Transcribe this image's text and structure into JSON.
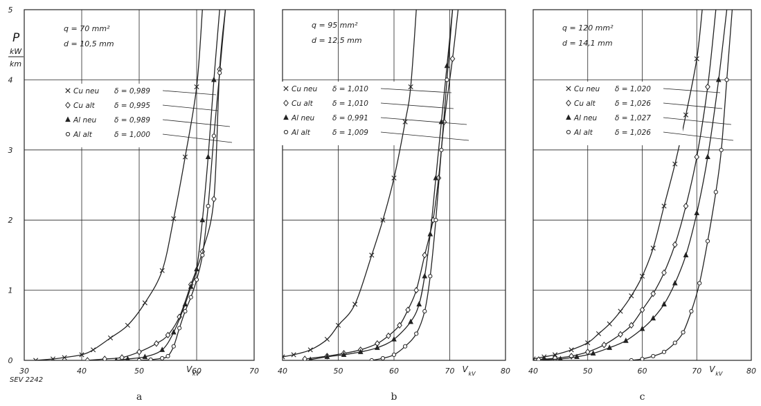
{
  "figure": {
    "ylabel_symbol": "P",
    "yunit_num": "kW",
    "yunit_den": "km",
    "xlabel_main": "V",
    "xlabel_sub": "kV",
    "source_code": "SEV 2242",
    "line_color": "#222222",
    "paper_color": "#ffffff"
  },
  "chart_data": [
    {
      "type": "line",
      "panel_label": "a",
      "params": [
        "q = 70 mm²",
        "d = 10,5 mm"
      ],
      "xlim": [
        30,
        70
      ],
      "ylim": [
        0,
        5
      ],
      "xticks": [
        30,
        40,
        50,
        60,
        70
      ],
      "yticks": [
        0,
        1,
        2,
        3,
        4,
        5
      ],
      "grid": true,
      "legend_position": "middle",
      "series": [
        {
          "name": "Cu neu",
          "delta": "δ = 0,989",
          "marker": "x",
          "x": [
            32,
            35,
            37,
            40,
            42,
            45,
            48,
            51,
            54,
            56,
            58,
            60,
            61
          ],
          "y": [
            0,
            0.02,
            0.04,
            0.08,
            0.15,
            0.32,
            0.5,
            0.82,
            1.28,
            2.02,
            2.9,
            3.9,
            5
          ]
        },
        {
          "name": "Cu alt",
          "delta": "δ = 0,995",
          "marker": "diamond",
          "x": [
            41,
            44,
            47,
            50,
            53,
            55,
            57,
            59,
            61,
            63,
            64,
            65
          ],
          "y": [
            0,
            0.02,
            0.04,
            0.12,
            0.24,
            0.36,
            0.62,
            1.08,
            1.55,
            2.3,
            4.15,
            5
          ]
        },
        {
          "name": "Al neu",
          "delta": "δ = 0,989",
          "marker": "triangle",
          "x": [
            46,
            48,
            51,
            54,
            56,
            58,
            59,
            60,
            61,
            62,
            63,
            64
          ],
          "y": [
            0,
            0.02,
            0.05,
            0.15,
            0.4,
            0.8,
            1.05,
            1.3,
            2.0,
            2.9,
            4.0,
            5
          ]
        },
        {
          "name": "Al alt",
          "delta": "δ = 1,000",
          "marker": "circle",
          "x": [
            50,
            52,
            54,
            55,
            56,
            57,
            58,
            59,
            60,
            61,
            62,
            63,
            64,
            65
          ],
          "y": [
            0,
            0.01,
            0.03,
            0.06,
            0.2,
            0.46,
            0.7,
            0.9,
            1.15,
            1.5,
            2.2,
            3.2,
            4.1,
            5
          ]
        }
      ]
    },
    {
      "type": "line",
      "panel_label": "b",
      "params": [
        "q = 95 mm²",
        "d = 12,5 mm"
      ],
      "xlim": [
        40,
        80
      ],
      "ylim": [
        0,
        5
      ],
      "xticks": [
        40,
        50,
        60,
        70,
        80
      ],
      "yticks": [
        0,
        1,
        2,
        3,
        4,
        5
      ],
      "grid": true,
      "legend_position": "middle",
      "series": [
        {
          "name": "Cu neu",
          "delta": "δ = 1,010",
          "marker": "x",
          "x": [
            40,
            42,
            45,
            48,
            50,
            53,
            56,
            58,
            60,
            62,
            63,
            64
          ],
          "y": [
            0.05,
            0.08,
            0.15,
            0.3,
            0.5,
            0.8,
            1.5,
            2.0,
            2.6,
            3.4,
            3.9,
            5
          ]
        },
        {
          "name": "Cu alt",
          "delta": "δ = 1,010",
          "marker": "diamond",
          "x": [
            44,
            48,
            51,
            54,
            57,
            59,
            61,
            62.5,
            64,
            65.5,
            67,
            68,
            69,
            70.5,
            71.5
          ],
          "y": [
            0.02,
            0.06,
            0.1,
            0.15,
            0.24,
            0.35,
            0.5,
            0.72,
            1.0,
            1.5,
            2.0,
            2.6,
            3.4,
            4.3,
            5
          ]
        },
        {
          "name": "Al neu",
          "delta": "δ = 0,991",
          "marker": "triangle",
          "x": [
            45,
            48,
            51,
            54,
            57,
            60,
            63,
            64.5,
            65.5,
            66.5,
            67.5,
            68.5,
            69.5,
            70.5
          ],
          "y": [
            0.01,
            0.05,
            0.08,
            0.12,
            0.18,
            0.3,
            0.55,
            0.8,
            1.2,
            1.8,
            2.6,
            3.4,
            4.2,
            5
          ]
        },
        {
          "name": "Al alt",
          "delta": "δ = 1,009",
          "marker": "circle",
          "x": [
            56,
            58,
            60,
            62,
            64,
            65.5,
            66.5,
            67.5,
            68.5,
            69.5,
            70.5
          ],
          "y": [
            0,
            0.03,
            0.08,
            0.2,
            0.38,
            0.7,
            1.2,
            2.0,
            3.0,
            4.0,
            5
          ]
        }
      ]
    },
    {
      "type": "line",
      "panel_label": "c",
      "params": [
        "q = 120 mm²",
        "d = 14,1 mm"
      ],
      "xlim": [
        40,
        80
      ],
      "ylim": [
        0,
        5
      ],
      "xticks": [
        40,
        50,
        60,
        70,
        80
      ],
      "yticks": [
        0,
        1,
        2,
        3,
        4,
        5
      ],
      "grid": true,
      "legend_position": "middle",
      "series": [
        {
          "name": "Cu neu",
          "delta": "δ = 1,020",
          "marker": "x",
          "x": [
            40,
            42,
            44,
            47,
            50,
            52,
            54,
            56,
            58,
            60,
            62,
            64,
            66,
            68,
            70,
            71
          ],
          "y": [
            0.02,
            0.05,
            0.08,
            0.15,
            0.25,
            0.38,
            0.52,
            0.7,
            0.92,
            1.2,
            1.6,
            2.2,
            2.8,
            3.5,
            4.3,
            5
          ]
        },
        {
          "name": "Cu alt",
          "delta": "δ = 1,026",
          "marker": "diamond",
          "x": [
            41,
            44,
            47,
            50,
            53,
            56,
            58,
            60,
            62,
            64,
            66,
            68,
            70,
            72,
            73.5
          ],
          "y": [
            0.01,
            0.03,
            0.06,
            0.12,
            0.22,
            0.37,
            0.5,
            0.72,
            0.95,
            1.25,
            1.65,
            2.2,
            2.9,
            3.9,
            5
          ]
        },
        {
          "name": "Al neu",
          "delta": "δ = 1,027",
          "marker": "triangle",
          "x": [
            42,
            45,
            48,
            51,
            54,
            57,
            60,
            62,
            64,
            66,
            68,
            70,
            72,
            74,
            75.5
          ],
          "y": [
            0.01,
            0.02,
            0.05,
            0.1,
            0.18,
            0.28,
            0.45,
            0.6,
            0.8,
            1.1,
            1.5,
            2.1,
            2.9,
            4.0,
            5
          ]
        },
        {
          "name": "Al alt",
          "delta": "δ = 1,026",
          "marker": "circle",
          "x": [
            58,
            60,
            62,
            64,
            66,
            67.5,
            69,
            70.5,
            72,
            73.5,
            74.5,
            75.5,
            76.5
          ],
          "y": [
            0,
            0.02,
            0.06,
            0.12,
            0.25,
            0.4,
            0.7,
            1.1,
            1.7,
            2.4,
            3.0,
            4.0,
            5
          ]
        }
      ]
    }
  ]
}
